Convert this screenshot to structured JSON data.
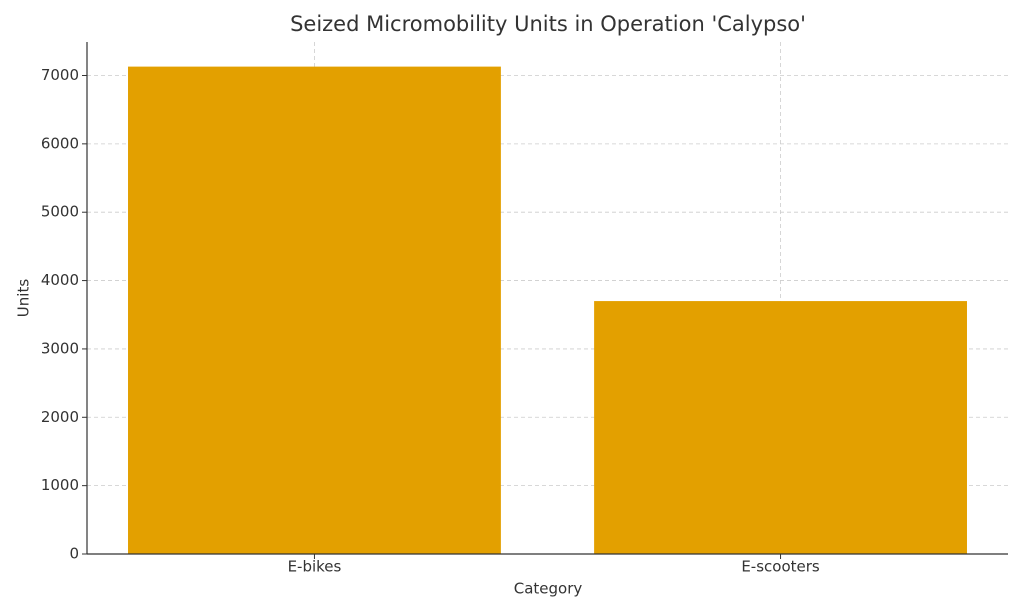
{
  "chart_data": {
    "type": "bar",
    "title": "Seized Micromobility Units in Operation 'Calypso'",
    "x_label": "Category",
    "y_label": "Units",
    "categories": [
      "E-bikes",
      "E-scooters"
    ],
    "values": [
      7130,
      3700
    ],
    "color": "#e3a000",
    "ylim": [
      0,
      7490
    ],
    "yticks": [
      0,
      1000,
      2000,
      3000,
      4000,
      5000,
      6000,
      7000
    ],
    "grid": true
  }
}
